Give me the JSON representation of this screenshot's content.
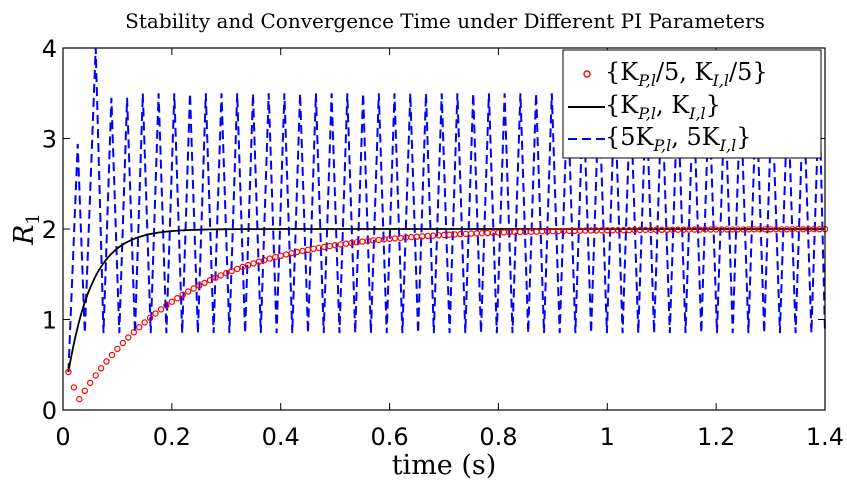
{
  "chart_data": {
    "type": "line",
    "title": "Stability and Convergence Time under Different PI Parameters",
    "xlabel": "time (s)",
    "ylabel": "R",
    "ylabel_sub": "1",
    "xlim": [
      0,
      1.4
    ],
    "ylim": [
      0,
      4
    ],
    "xticks": [
      0,
      0.2,
      0.4,
      0.6,
      0.8,
      1,
      1.2,
      1.4
    ],
    "xtick_labels": [
      "0",
      "0.2",
      "0.4",
      "0.6",
      "0.8",
      "1",
      "1.2",
      "1.4"
    ],
    "yticks": [
      0,
      1,
      2,
      3,
      4
    ],
    "ytick_labels": [
      "0",
      "1",
      "2",
      "3",
      "4"
    ],
    "grid": false,
    "legend_position": "top-right",
    "series": [
      {
        "name": "{K_{P,l}/5, K_{I,l}/5}",
        "legend_main": "{K",
        "legend_parts": [
          "{K",
          "P,l",
          "/5, K",
          "I,l",
          "/5}"
        ],
        "style": "markers",
        "color": "#ff0000",
        "start": 0.42,
        "dip": 0.12,
        "final": 2.0,
        "tau": 0.2
      },
      {
        "name": "{K_{P,l}, K_{I,l}}",
        "legend_parts": [
          "{K",
          "P,l",
          ", K",
          "I,l",
          "}"
        ],
        "style": "solid",
        "color": "#000000",
        "start": 0.42,
        "final": 2.0,
        "tau": 0.045
      },
      {
        "name": "{5K_{P,l}, 5K_{I,l}}",
        "legend_parts": [
          "{5K",
          "P,l",
          ", 5K",
          "I,l",
          "}"
        ],
        "style": "dashed",
        "color": "#0000ff",
        "low": 0.85,
        "high": 3.5,
        "peak": 4.05,
        "period": 0.0289
      }
    ]
  }
}
